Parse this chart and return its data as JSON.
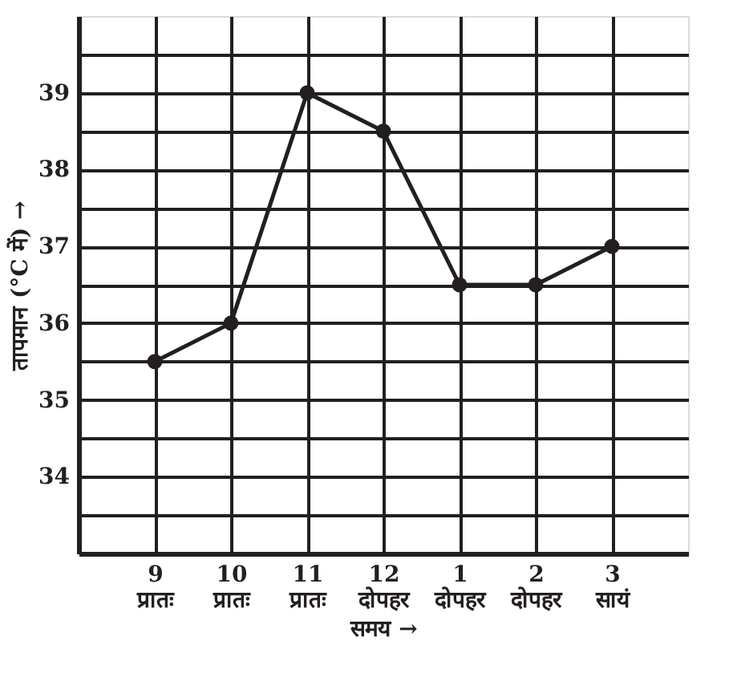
{
  "chart_data": {
    "type": "line",
    "xlabel": "समय →",
    "ylabel": "तापमान (°C में) →",
    "categories": [
      "9\nप्रातः",
      "10\nप्रातः",
      "11\nप्रातः",
      "12\nदोपहर",
      "1\nदोपहर",
      "2\nदोपहर",
      "3\nसायं"
    ],
    "series": [
      {
        "color": "#231f20",
        "values": [
          35.5,
          36,
          39,
          38.5,
          36.5,
          36.5,
          37
        ]
      }
    ],
    "ylim": [
      33,
      40
    ],
    "yticks": [
      {
        "value": 33.5,
        "label": null
      },
      34,
      {
        "value": 34.5,
        "label": null
      },
      35,
      {
        "value": 35.5,
        "label": null
      },
      36,
      {
        "value": 36.5,
        "label": null
      },
      37,
      {
        "value": 37.5,
        "label": null
      },
      38,
      {
        "value": 38.5,
        "label": null
      },
      39,
      {
        "value": 39.5,
        "label": null
      }
    ],
    "grid": true,
    "marker": "circle",
    "line_style": "solid",
    "legend": false
  }
}
